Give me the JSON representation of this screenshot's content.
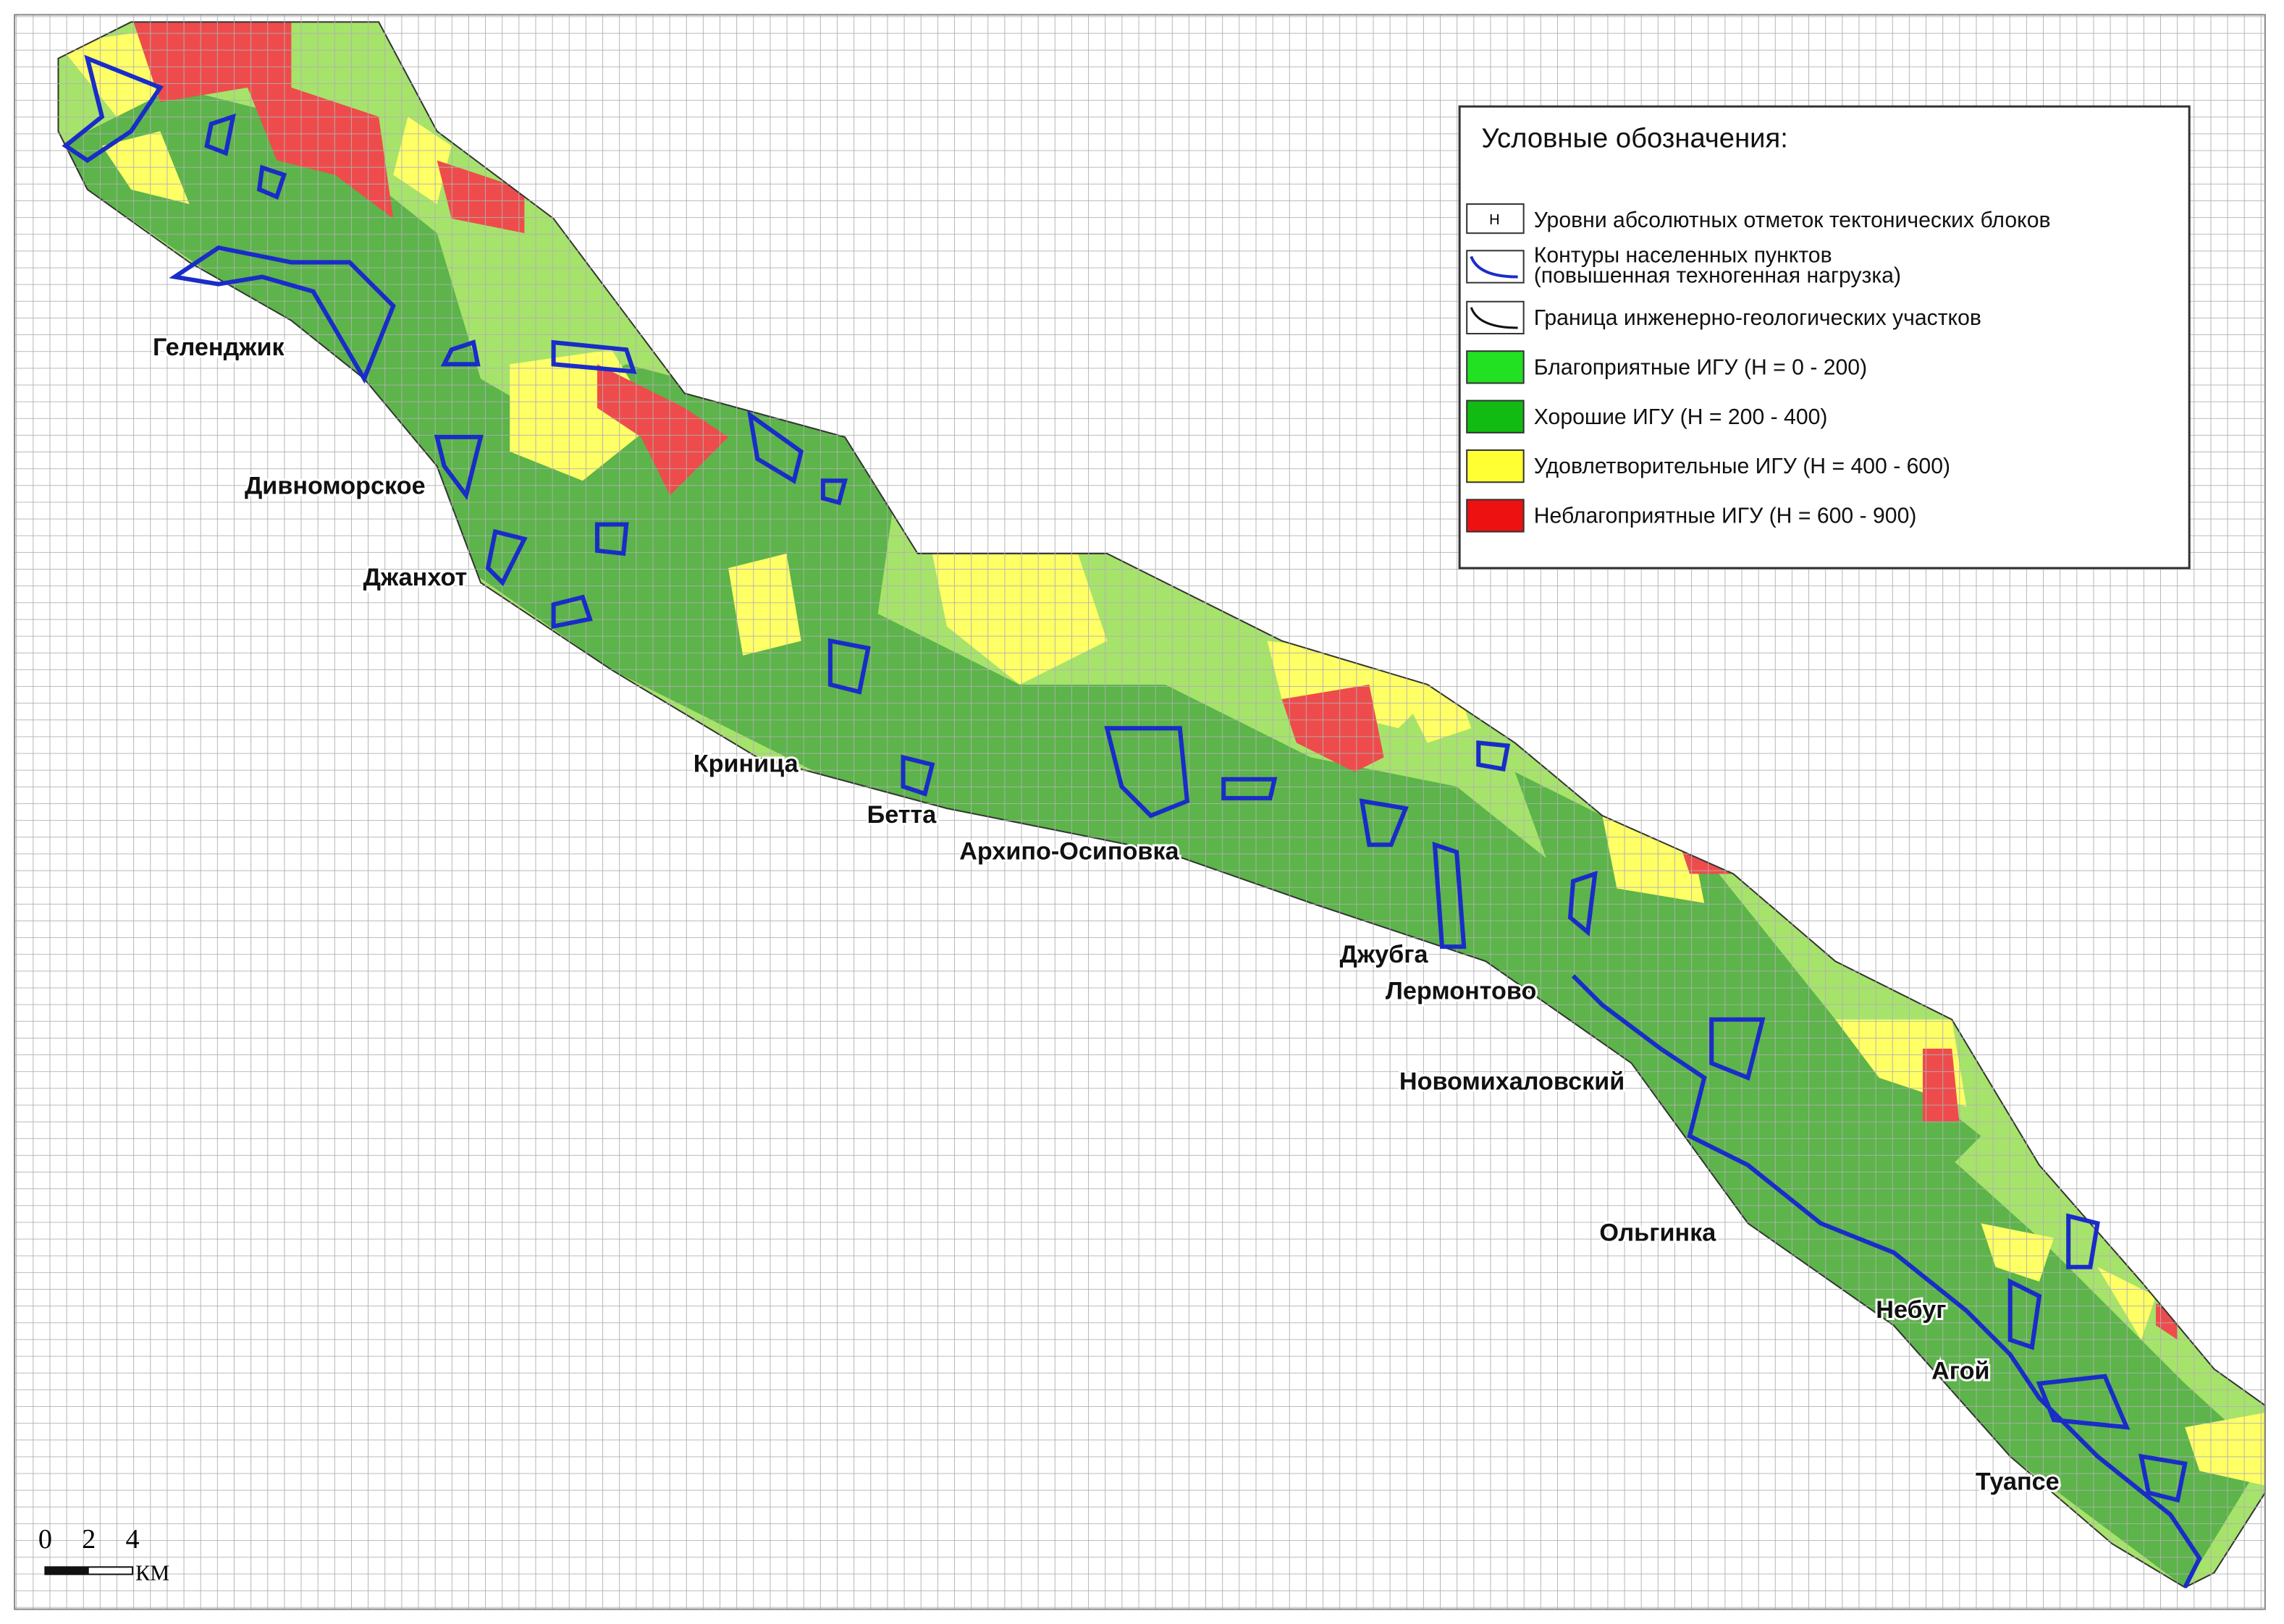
{
  "legend": {
    "title": "Условные обозначения:",
    "items": [
      {
        "symbol": "Н",
        "label": "Уровни абсолютных отметок тектонических блоков"
      },
      {
        "label": "Контуры населенных пунктов",
        "sublabel": "(повышенная техногенная нагрузка)"
      },
      {
        "label": "Граница инженерно-геологических участков"
      },
      {
        "label": "Благоприятные ИГУ (Н = 0 - 200)"
      },
      {
        "label": "Хорошие ИГУ (Н = 200 - 400)"
      },
      {
        "label": "Удовлетворительные ИГУ (Н = 400 - 600)"
      },
      {
        "label": "Неблагоприятные ИГУ (Н = 600 - 900)"
      }
    ]
  },
  "towns": [
    "Геленджик",
    "Дивноморское",
    "Джанхот",
    "Криница",
    "Бетта",
    "Архипо-Осиповка",
    "Джубга",
    "Лермонтово",
    "Новомихаловский",
    "Ольгинка",
    "Небуг",
    "Агой",
    "Туапсе"
  ],
  "scale": {
    "ticks": [
      "0",
      "2",
      "4"
    ],
    "unit": "КМ"
  }
}
